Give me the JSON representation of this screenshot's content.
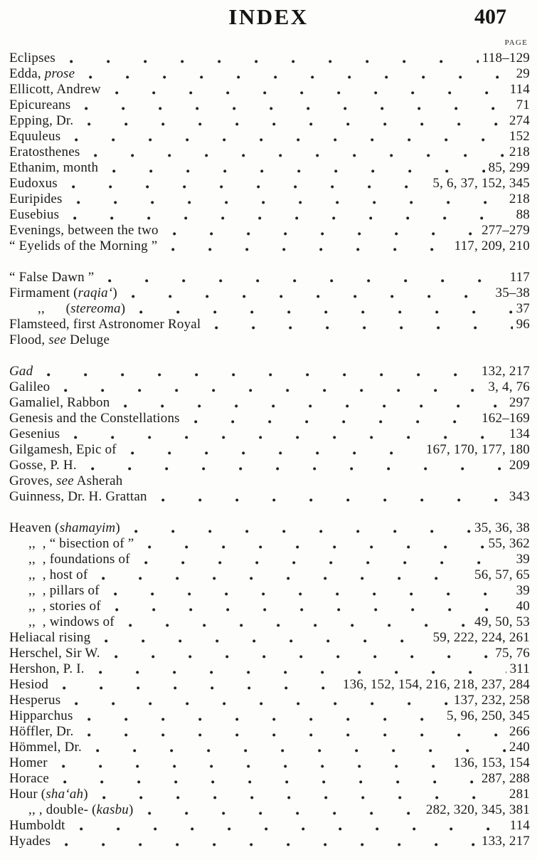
{
  "header": {
    "title": "INDEX",
    "page_number": "407",
    "column_label": "PAGE"
  },
  "index_sections": [
    {
      "rows": [
        {
          "parts": [
            {
              "t": "Eclipses"
            }
          ],
          "pages": "118–129"
        },
        {
          "parts": [
            {
              "t": "Edda, "
            },
            {
              "t": "prose",
              "i": true
            }
          ],
          "pages": "29"
        },
        {
          "parts": [
            {
              "t": "Ellicott, Andrew"
            }
          ],
          "pages": "114"
        },
        {
          "parts": [
            {
              "t": "Epicureans"
            }
          ],
          "pages": "71"
        },
        {
          "parts": [
            {
              "t": "Epping, Dr."
            }
          ],
          "pages": "274"
        },
        {
          "parts": [
            {
              "t": "Equuleus"
            }
          ],
          "pages": "152"
        },
        {
          "parts": [
            {
              "t": "Eratosthenes"
            }
          ],
          "pages": "218"
        },
        {
          "parts": [
            {
              "t": "Ethanim, month"
            }
          ],
          "pages": "85, 299"
        },
        {
          "parts": [
            {
              "t": "Eudoxus"
            }
          ],
          "pages": "5, 6, 37, 152, 345"
        },
        {
          "parts": [
            {
              "t": "Euripides"
            }
          ],
          "pages": "218"
        },
        {
          "parts": [
            {
              "t": "Eusebius"
            }
          ],
          "pages": "88"
        },
        {
          "parts": [
            {
              "t": "Evenings, between the two"
            }
          ],
          "pages": "277–279"
        },
        {
          "parts": [
            {
              "t": "“ Eyelids of the Morning ”"
            }
          ],
          "pages": "117, 209, 210"
        }
      ]
    },
    {
      "rows": [
        {
          "parts": [
            {
              "t": "“ False Dawn ”"
            }
          ],
          "pages": "117"
        },
        {
          "parts": [
            {
              "t": "Firmament ("
            },
            {
              "t": "raqia‘",
              "i": true
            },
            {
              "t": ")"
            }
          ],
          "pages": "35–38"
        },
        {
          "indent": 2,
          "parts": [
            {
              "t": ",,      ("
            },
            {
              "t": "stereoma",
              "i": true
            },
            {
              "t": ")"
            }
          ],
          "pages": "37"
        },
        {
          "parts": [
            {
              "t": "Flamsteed, first Astronomer Royal"
            }
          ],
          "pages": "96"
        },
        {
          "parts": [
            {
              "t": "Flood, "
            },
            {
              "t": "see",
              "i": true
            },
            {
              "t": " Deluge"
            }
          ],
          "pages": ""
        }
      ]
    },
    {
      "rows": [
        {
          "parts": [
            {
              "t": "Gad",
              "i": true
            }
          ],
          "pages": "132, 217"
        },
        {
          "parts": [
            {
              "t": "Galileo"
            }
          ],
          "pages": "3, 4, 76"
        },
        {
          "parts": [
            {
              "t": "Gamaliel, Rabbon"
            }
          ],
          "pages": "297"
        },
        {
          "parts": [
            {
              "t": "Genesis and the Constellations"
            }
          ],
          "pages": "162–169"
        },
        {
          "parts": [
            {
              "t": "Gesenius"
            }
          ],
          "pages": "134"
        },
        {
          "parts": [
            {
              "t": "Gilgamesh, Epic of"
            }
          ],
          "pages": "167, 170, 177, 180"
        },
        {
          "parts": [
            {
              "t": "Gosse, P. H."
            }
          ],
          "pages": "209"
        },
        {
          "parts": [
            {
              "t": "Groves, "
            },
            {
              "t": "see",
              "i": true
            },
            {
              "t": " Asherah"
            }
          ],
          "pages": ""
        },
        {
          "parts": [
            {
              "t": "Guinness, Dr. H. Grattan"
            }
          ],
          "pages": "343"
        }
      ]
    },
    {
      "rows": [
        {
          "parts": [
            {
              "t": "Heaven ("
            },
            {
              "t": "shamayim",
              "i": true
            },
            {
              "t": ")"
            }
          ],
          "pages": "35, 36, 38"
        },
        {
          "indent": 1,
          "parts": [
            {
              "t": ",,  , “ bisection of ”"
            }
          ],
          "pages": "55, 362"
        },
        {
          "indent": 1,
          "parts": [
            {
              "t": ",,  , foundations of"
            }
          ],
          "pages": "39"
        },
        {
          "indent": 1,
          "parts": [
            {
              "t": ",,  , host of"
            }
          ],
          "pages": "56, 57, 65"
        },
        {
          "indent": 1,
          "parts": [
            {
              "t": ",,  , pillars of"
            }
          ],
          "pages": "39"
        },
        {
          "indent": 1,
          "parts": [
            {
              "t": ",,  , stories of"
            }
          ],
          "pages": "40"
        },
        {
          "indent": 1,
          "parts": [
            {
              "t": ",,  , windows of"
            }
          ],
          "pages": "49, 50, 53"
        },
        {
          "parts": [
            {
              "t": "Heliacal rising"
            }
          ],
          "pages": "59, 222, 224, 261"
        },
        {
          "parts": [
            {
              "t": "Herschel, Sir W."
            }
          ],
          "pages": "75, 76"
        },
        {
          "parts": [
            {
              "t": "Hershon, P. I."
            }
          ],
          "pages": "311"
        },
        {
          "parts": [
            {
              "t": "Hesiod"
            }
          ],
          "pages": "136, 152, 154, 216, 218, 237, 284"
        },
        {
          "parts": [
            {
              "t": "Hesperus"
            }
          ],
          "pages": "137, 232, 258"
        },
        {
          "parts": [
            {
              "t": "Hipparchus"
            }
          ],
          "pages": "5, 96, 250, 345"
        },
        {
          "parts": [
            {
              "t": "Höffler, Dr."
            }
          ],
          "pages": "266"
        },
        {
          "parts": [
            {
              "t": "Hömmel, Dr."
            }
          ],
          "pages": "240"
        },
        {
          "parts": [
            {
              "t": "Homer"
            }
          ],
          "pages": "136, 153, 154"
        },
        {
          "parts": [
            {
              "t": "Horace"
            }
          ],
          "pages": "287, 288"
        },
        {
          "parts": [
            {
              "t": "Hour ("
            },
            {
              "t": "sha‘ah",
              "i": true
            },
            {
              "t": ")"
            }
          ],
          "pages": "281"
        },
        {
          "indent": 1,
          "parts": [
            {
              "t": ",, , double- ("
            },
            {
              "t": "kasbu",
              "i": true
            },
            {
              "t": ")"
            }
          ],
          "pages": "282, 320, 345, 381"
        },
        {
          "parts": [
            {
              "t": "Humboldt"
            }
          ],
          "pages": "114"
        },
        {
          "parts": [
            {
              "t": "Hyades"
            }
          ],
          "pages": "133, 217"
        }
      ]
    }
  ]
}
